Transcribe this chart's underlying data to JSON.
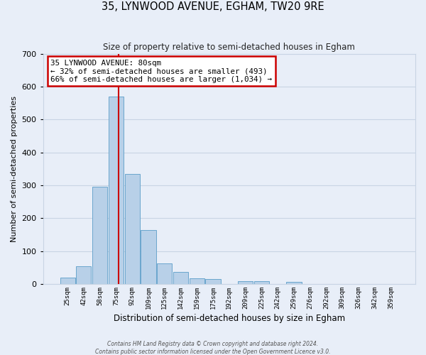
{
  "title": "35, LYNWOOD AVENUE, EGHAM, TW20 9RE",
  "subtitle": "Size of property relative to semi-detached houses in Egham",
  "xlabel": "Distribution of semi-detached houses by size in Egham",
  "ylabel": "Number of semi-detached properties",
  "bar_values": [
    20,
    55,
    295,
    570,
    335,
    165,
    62,
    37,
    18,
    15,
    0,
    8,
    8,
    0,
    6,
    0,
    0,
    0,
    0,
    0,
    0
  ],
  "bin_labels": [
    "25sqm",
    "42sqm",
    "58sqm",
    "75sqm",
    "92sqm",
    "109sqm",
    "125sqm",
    "142sqm",
    "159sqm",
    "175sqm",
    "192sqm",
    "209sqm",
    "225sqm",
    "242sqm",
    "259sqm",
    "276sqm",
    "292sqm",
    "309sqm",
    "326sqm",
    "342sqm",
    "359sqm"
  ],
  "bar_color": "#b8d0e8",
  "bar_edge_color": "#5b9dc8",
  "annotation_title": "35 LYNWOOD AVENUE: 80sqm",
  "annotation_line1": "← 32% of semi-detached houses are smaller (493)",
  "annotation_line2": "66% of semi-detached houses are larger (1,034) →",
  "annotation_box_facecolor": "#ffffff",
  "annotation_box_edgecolor": "#cc0000",
  "red_line_color": "#cc0000",
  "red_line_x": 3.15,
  "ylim": [
    0,
    700
  ],
  "yticks": [
    0,
    100,
    200,
    300,
    400,
    500,
    600,
    700
  ],
  "grid_color": "#c8d4e4",
  "bg_color": "#e8eef8",
  "footer1": "Contains HM Land Registry data © Crown copyright and database right 2024.",
  "footer2": "Contains public sector information licensed under the Open Government Licence v3.0."
}
